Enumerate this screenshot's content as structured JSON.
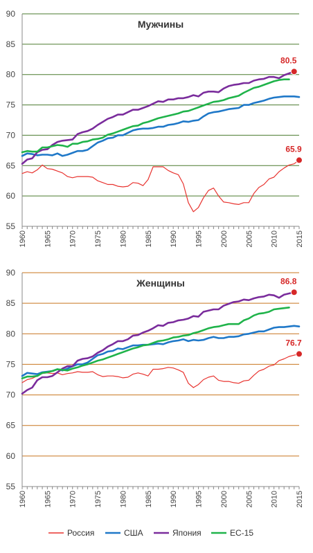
{
  "chart_data": [
    {
      "type": "line",
      "title": "Мужчины",
      "xlim": [
        1960,
        2015
      ],
      "ylim": [
        55,
        90
      ],
      "yticks": [
        55,
        60,
        65,
        70,
        75,
        80,
        85,
        90
      ],
      "xticks": [
        1960,
        1965,
        1970,
        1975,
        1980,
        1985,
        1990,
        1995,
        2000,
        2005,
        2010,
        2015
      ],
      "grid_color": "#4a7a2e",
      "annotations": [
        {
          "text": "80.5",
          "x": 2014,
          "y": 80.5
        },
        {
          "text": "65.9",
          "x": 2015,
          "y": 65.9
        }
      ],
      "series": [
        {
          "name": "Россия",
          "color": "#e8322e",
          "x": [
            1960,
            1961,
            1962,
            1963,
            1964,
            1965,
            1966,
            1967,
            1968,
            1969,
            1970,
            1971,
            1972,
            1973,
            1974,
            1975,
            1976,
            1977,
            1978,
            1979,
            1980,
            1981,
            1982,
            1983,
            1984,
            1985,
            1986,
            1987,
            1988,
            1989,
            1990,
            1991,
            1992,
            1993,
            1994,
            1995,
            1996,
            1997,
            1998,
            1999,
            2000,
            2001,
            2002,
            2003,
            2004,
            2005,
            2006,
            2007,
            2008,
            2009,
            2010,
            2011,
            2012,
            2013,
            2014,
            2015
          ],
          "values": [
            63.7,
            64.0,
            63.8,
            64.3,
            65.1,
            64.5,
            64.4,
            64.1,
            63.8,
            63.2,
            63.0,
            63.2,
            63.2,
            63.2,
            63.1,
            62.5,
            62.2,
            61.9,
            61.9,
            61.6,
            61.5,
            61.6,
            62.2,
            62.1,
            61.7,
            62.7,
            64.8,
            64.8,
            64.8,
            64.2,
            63.8,
            63.5,
            62.0,
            58.9,
            57.4,
            58.1,
            59.7,
            60.9,
            61.3,
            60.0,
            59.0,
            58.9,
            58.7,
            58.6,
            58.9,
            58.9,
            60.4,
            61.4,
            61.9,
            62.8,
            63.1,
            64.0,
            64.6,
            65.1,
            65.3,
            65.9
          ]
        },
        {
          "name": "США",
          "color": "#1f78c8",
          "x": [
            1960,
            1961,
            1962,
            1963,
            1964,
            1965,
            1966,
            1967,
            1968,
            1969,
            1970,
            1971,
            1972,
            1973,
            1974,
            1975,
            1976,
            1977,
            1978,
            1979,
            1980,
            1981,
            1982,
            1983,
            1984,
            1985,
            1986,
            1987,
            1988,
            1989,
            1990,
            1991,
            1992,
            1993,
            1994,
            1995,
            1996,
            1997,
            1998,
            1999,
            2000,
            2001,
            2002,
            2003,
            2004,
            2005,
            2006,
            2007,
            2008,
            2009,
            2010,
            2011,
            2012,
            2013,
            2014,
            2015
          ],
          "values": [
            66.6,
            67.0,
            66.9,
            66.7,
            66.8,
            66.8,
            66.7,
            67.0,
            66.6,
            66.8,
            67.1,
            67.4,
            67.4,
            67.6,
            68.2,
            68.8,
            69.1,
            69.5,
            69.6,
            70.0,
            70.0,
            70.4,
            70.8,
            71.0,
            71.1,
            71.1,
            71.2,
            71.4,
            71.4,
            71.7,
            71.8,
            72.0,
            72.3,
            72.2,
            72.4,
            72.5,
            73.1,
            73.6,
            73.8,
            73.9,
            74.1,
            74.3,
            74.4,
            74.5,
            75.0,
            75.0,
            75.3,
            75.5,
            75.7,
            76.0,
            76.2,
            76.3,
            76.4,
            76.4,
            76.4,
            76.3
          ]
        },
        {
          "name": "Япония",
          "color": "#7a2c9c",
          "x": [
            1960,
            1961,
            1962,
            1963,
            1964,
            1965,
            1966,
            1967,
            1968,
            1969,
            1970,
            1971,
            1972,
            1973,
            1974,
            1975,
            1976,
            1977,
            1978,
            1979,
            1980,
            1981,
            1982,
            1983,
            1984,
            1985,
            1986,
            1987,
            1988,
            1989,
            1990,
            1991,
            1992,
            1993,
            1994,
            1995,
            1996,
            1997,
            1998,
            1999,
            2000,
            2001,
            2002,
            2003,
            2004,
            2005,
            2006,
            2007,
            2008,
            2009,
            2010,
            2011,
            2012,
            2013,
            2014
          ],
          "values": [
            65.3,
            66.0,
            66.2,
            67.2,
            67.6,
            67.7,
            68.4,
            68.9,
            69.1,
            69.2,
            69.3,
            70.2,
            70.5,
            70.7,
            71.1,
            71.7,
            72.2,
            72.7,
            73.0,
            73.4,
            73.4,
            73.8,
            74.2,
            74.2,
            74.5,
            74.8,
            75.2,
            75.6,
            75.5,
            75.9,
            75.9,
            76.1,
            76.1,
            76.3,
            76.6,
            76.4,
            77.0,
            77.2,
            77.2,
            77.1,
            77.7,
            78.1,
            78.3,
            78.4,
            78.6,
            78.6,
            79.0,
            79.2,
            79.3,
            79.6,
            79.6,
            79.4,
            79.9,
            80.2,
            80.5
          ]
        },
        {
          "name": "ЕС-15",
          "color": "#1fb34a",
          "x": [
            1960,
            1961,
            1962,
            1963,
            1964,
            1965,
            1966,
            1967,
            1968,
            1969,
            1970,
            1971,
            1972,
            1973,
            1974,
            1975,
            1976,
            1977,
            1978,
            1979,
            1980,
            1981,
            1982,
            1983,
            1984,
            1985,
            1986,
            1987,
            1988,
            1989,
            1990,
            1991,
            1992,
            1993,
            1994,
            1995,
            1996,
            1997,
            1998,
            1999,
            2000,
            2001,
            2002,
            2003,
            2004,
            2005,
            2006,
            2007,
            2008,
            2009,
            2010,
            2011,
            2012,
            2013
          ],
          "values": [
            67.2,
            67.4,
            67.3,
            67.3,
            68.0,
            68.0,
            68.2,
            68.4,
            68.3,
            68.1,
            68.6,
            68.6,
            68.9,
            69.0,
            69.3,
            69.4,
            69.6,
            70.1,
            70.3,
            70.6,
            70.9,
            71.2,
            71.5,
            71.6,
            72.0,
            72.2,
            72.5,
            72.8,
            73.0,
            73.2,
            73.4,
            73.6,
            73.9,
            74.0,
            74.3,
            74.6,
            74.9,
            75.2,
            75.5,
            75.6,
            75.8,
            76.1,
            76.3,
            76.5,
            77.0,
            77.4,
            77.8,
            78.0,
            78.3,
            78.6,
            78.9,
            79.1,
            79.2,
            79.2
          ]
        }
      ]
    },
    {
      "type": "line",
      "title": "Женщины",
      "xlim": [
        1960,
        2015
      ],
      "ylim": [
        55,
        90
      ],
      "yticks": [
        55,
        60,
        65,
        70,
        75,
        80,
        85,
        90
      ],
      "xticks": [
        1960,
        1965,
        1970,
        1975,
        1980,
        1985,
        1990,
        1995,
        2000,
        2005,
        2010,
        2015
      ],
      "grid_color": "#c8741e",
      "annotations": [
        {
          "text": "86.8",
          "x": 2014,
          "y": 86.8
        },
        {
          "text": "76.7",
          "x": 2015,
          "y": 76.7
        }
      ],
      "series": [
        {
          "name": "Россия",
          "color": "#e8322e",
          "x": [
            1960,
            1961,
            1962,
            1963,
            1964,
            1965,
            1966,
            1967,
            1968,
            1969,
            1970,
            1971,
            1972,
            1973,
            1974,
            1975,
            1976,
            1977,
            1978,
            1979,
            1980,
            1981,
            1982,
            1983,
            1984,
            1985,
            1986,
            1987,
            1988,
            1989,
            1990,
            1991,
            1992,
            1993,
            1994,
            1995,
            1996,
            1997,
            1998,
            1999,
            2000,
            2001,
            2002,
            2003,
            2004,
            2005,
            2006,
            2007,
            2008,
            2009,
            2010,
            2011,
            2012,
            2013,
            2014,
            2015
          ],
          "values": [
            72.0,
            72.5,
            72.7,
            73.1,
            73.5,
            73.6,
            73.5,
            73.6,
            73.3,
            73.5,
            73.6,
            73.8,
            73.7,
            73.7,
            73.8,
            73.3,
            73.0,
            73.1,
            73.1,
            73.0,
            72.8,
            72.9,
            73.4,
            73.6,
            73.4,
            73.1,
            74.2,
            74.2,
            74.3,
            74.5,
            74.4,
            74.1,
            73.7,
            71.9,
            71.2,
            71.7,
            72.5,
            72.9,
            73.1,
            72.4,
            72.2,
            72.2,
            72.0,
            71.9,
            72.3,
            72.4,
            73.2,
            73.9,
            74.2,
            74.7,
            74.9,
            75.6,
            75.9,
            76.3,
            76.5,
            76.7
          ]
        },
        {
          "name": "США",
          "color": "#1f78c8",
          "x": [
            1960,
            1961,
            1962,
            1963,
            1964,
            1965,
            1966,
            1967,
            1968,
            1969,
            1970,
            1971,
            1972,
            1973,
            1974,
            1975,
            1976,
            1977,
            1978,
            1979,
            1980,
            1981,
            1982,
            1983,
            1984,
            1985,
            1986,
            1987,
            1988,
            1989,
            1990,
            1991,
            1992,
            1993,
            1994,
            1995,
            1996,
            1997,
            1998,
            1999,
            2000,
            2001,
            2002,
            2003,
            2004,
            2005,
            2006,
            2007,
            2008,
            2009,
            2010,
            2011,
            2012,
            2013,
            2014,
            2015
          ],
          "values": [
            73.1,
            73.6,
            73.5,
            73.4,
            73.7,
            73.8,
            73.9,
            74.2,
            74.0,
            74.3,
            74.7,
            75.0,
            75.0,
            75.3,
            75.9,
            76.5,
            76.7,
            77.1,
            77.2,
            77.6,
            77.5,
            77.8,
            78.1,
            78.1,
            78.2,
            78.2,
            78.3,
            78.4,
            78.3,
            78.6,
            78.8,
            78.9,
            79.1,
            78.8,
            79.0,
            78.9,
            79.0,
            79.3,
            79.5,
            79.3,
            79.3,
            79.5,
            79.5,
            79.6,
            79.9,
            80.0,
            80.2,
            80.4,
            80.4,
            80.7,
            81.0,
            81.1,
            81.1,
            81.2,
            81.3,
            81.2
          ]
        },
        {
          "name": "Япония",
          "color": "#7a2c9c",
          "x": [
            1960,
            1961,
            1962,
            1963,
            1964,
            1965,
            1966,
            1967,
            1968,
            1969,
            1970,
            1971,
            1972,
            1973,
            1974,
            1975,
            1976,
            1977,
            1978,
            1979,
            1980,
            1981,
            1982,
            1983,
            1984,
            1985,
            1986,
            1987,
            1988,
            1989,
            1990,
            1991,
            1992,
            1993,
            1994,
            1995,
            1996,
            1997,
            1998,
            1999,
            2000,
            2001,
            2002,
            2003,
            2004,
            2005,
            2006,
            2007,
            2008,
            2009,
            2010,
            2011,
            2012,
            2013,
            2014
          ],
          "values": [
            70.2,
            70.8,
            71.2,
            72.4,
            72.9,
            72.9,
            73.1,
            73.7,
            74.3,
            74.7,
            74.7,
            75.6,
            75.9,
            76.0,
            76.3,
            76.9,
            77.3,
            77.9,
            78.3,
            78.8,
            78.8,
            79.1,
            79.7,
            79.8,
            80.2,
            80.5,
            80.9,
            81.4,
            81.3,
            81.8,
            81.9,
            82.2,
            82.3,
            82.5,
            82.9,
            82.8,
            83.6,
            83.8,
            84.0,
            84.0,
            84.6,
            84.9,
            85.2,
            85.3,
            85.6,
            85.5,
            85.8,
            86.0,
            86.1,
            86.4,
            86.3,
            85.9,
            86.4,
            86.6,
            86.8
          ]
        },
        {
          "name": "ЕС-15",
          "color": "#1fb34a",
          "x": [
            1960,
            1961,
            1962,
            1963,
            1964,
            1965,
            1966,
            1967,
            1968,
            1969,
            1970,
            1971,
            1972,
            1973,
            1974,
            1975,
            1976,
            1977,
            1978,
            1979,
            1980,
            1981,
            1982,
            1983,
            1984,
            1985,
            1986,
            1987,
            1988,
            1989,
            1990,
            1991,
            1992,
            1993,
            1994,
            1995,
            1996,
            1997,
            1998,
            1999,
            2000,
            2001,
            2002,
            2003,
            2004,
            2005,
            2006,
            2007,
            2008,
            2009,
            2010,
            2011,
            2012,
            2013
          ],
          "values": [
            72.7,
            73.0,
            73.0,
            73.1,
            73.6,
            73.7,
            73.9,
            74.2,
            74.1,
            74.0,
            74.3,
            74.5,
            74.8,
            75.0,
            75.3,
            75.6,
            75.8,
            76.1,
            76.4,
            76.7,
            77.0,
            77.3,
            77.6,
            77.8,
            78.1,
            78.2,
            78.5,
            78.8,
            78.9,
            79.1,
            79.4,
            79.5,
            79.7,
            79.8,
            80.1,
            80.3,
            80.6,
            80.9,
            81.1,
            81.2,
            81.4,
            81.6,
            81.6,
            81.6,
            82.2,
            82.5,
            83.0,
            83.3,
            83.4,
            83.6,
            84.0,
            84.1,
            84.2,
            84.3
          ]
        }
      ]
    }
  ],
  "legend": {
    "placement": "bottom",
    "items": [
      {
        "label": "Россия",
        "color": "#e8322e"
      },
      {
        "label": "США",
        "color": "#1f78c8"
      },
      {
        "label": "Япония",
        "color": "#7a2c9c"
      },
      {
        "label": "ЕС-15",
        "color": "#1fb34a"
      }
    ]
  }
}
